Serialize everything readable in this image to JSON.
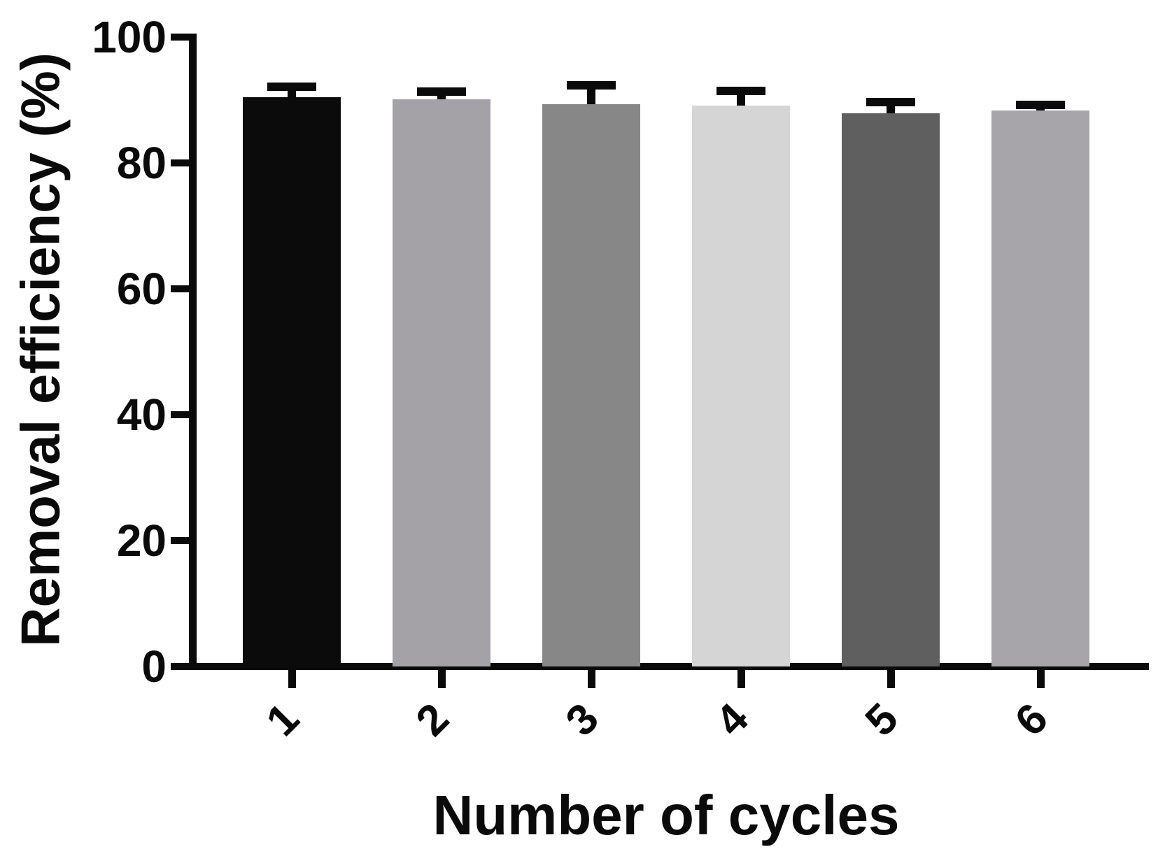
{
  "figure": {
    "background": "#ffffff",
    "axis_color": "#0a0a0a",
    "text_color": "#0a0a0a"
  },
  "chart_data": {
    "type": "bar",
    "title": "",
    "xlabel": "Number of cycles",
    "ylabel": "Removal efficiency (%)",
    "categories": [
      "1",
      "2",
      "3",
      "4",
      "5",
      "6"
    ],
    "values": [
      90.4,
      90.1,
      89.3,
      89.1,
      87.9,
      88.3
    ],
    "errors": [
      1.7,
      1.2,
      3.0,
      2.4,
      1.8,
      0.9
    ],
    "error_bars": "upper-only",
    "bar_colors": [
      "#0b0b0b",
      "#a4a2a7",
      "#878787",
      "#d6d5d6",
      "#5f5f5f",
      "#a7a5aa"
    ],
    "error_color": "#0a0a0a",
    "ylim": [
      0,
      100
    ],
    "yticks": [
      0,
      20,
      40,
      60,
      80,
      100
    ],
    "ytick_labels": [
      "0",
      "20",
      "40",
      "60",
      "80",
      "100"
    ],
    "xtick_rotation_deg": -45,
    "grid": false,
    "legend": "none"
  }
}
